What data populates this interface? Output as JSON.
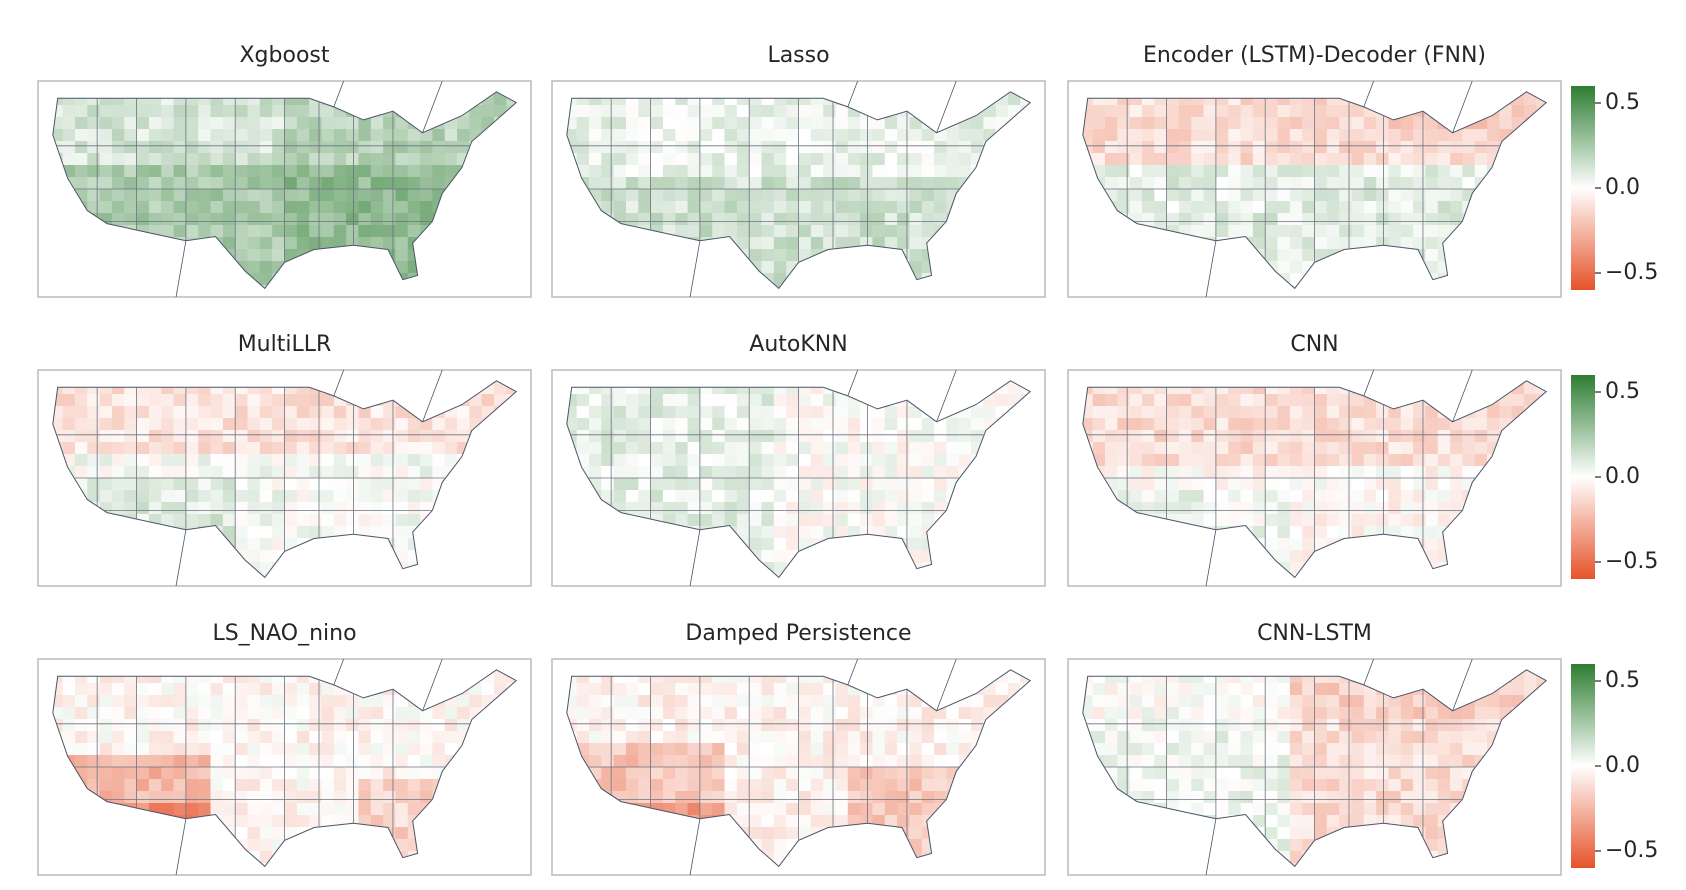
{
  "panels": [
    {
      "title": "Xgboost"
    },
    {
      "title": "Lasso"
    },
    {
      "title": "Encoder (LSTM)-Decoder (FNN)"
    },
    {
      "title": "MultiLLR"
    },
    {
      "title": "AutoKNN"
    },
    {
      "title": "CNN"
    },
    {
      "title": "LS_NAO_nino"
    },
    {
      "title": "Damped Persistence"
    },
    {
      "title": "CNN-LSTM"
    }
  ],
  "colorbar": {
    "lim": [
      -0.6,
      0.6
    ],
    "ticks": [
      0.5,
      {
        "value": 0,
        "label": "0.0"
      },
      {
        "value": -0.5,
        "label": "−0.5"
      }
    ],
    "colors": {
      "low": "#e5532a",
      "mid": "#ffffff",
      "high": "#2e7d32"
    }
  }
}
